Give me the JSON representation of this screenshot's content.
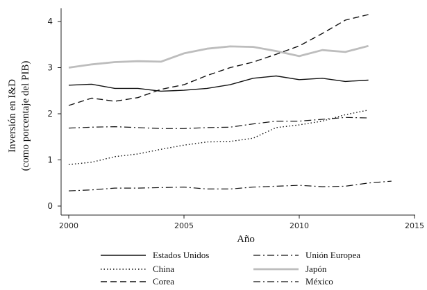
{
  "chart_data": {
    "type": "line",
    "title": "",
    "xlabel": "Año",
    "ylabel": [
      "Inversión en I&D",
      "(como porcentaje del PIB)"
    ],
    "xlim": [
      2000,
      2015
    ],
    "ylim": [
      0,
      4
    ],
    "xticks": [
      2000,
      2005,
      2010,
      2015
    ],
    "yticks": [
      0,
      1,
      2,
      3,
      4
    ],
    "grid": false,
    "legend_placement": "bottom",
    "series": [
      {
        "name": "Estados Unidos",
        "style": "solid",
        "color": "#111111",
        "x": [
          2000,
          2001,
          2002,
          2003,
          2004,
          2005,
          2006,
          2007,
          2008,
          2009,
          2010,
          2011,
          2012,
          2013
        ],
        "values": [
          2.62,
          2.64,
          2.55,
          2.55,
          2.49,
          2.51,
          2.55,
          2.63,
          2.77,
          2.82,
          2.74,
          2.77,
          2.7,
          2.73
        ]
      },
      {
        "name": "Unión Europea",
        "style": "dashdot",
        "color": "#111111",
        "x": [
          2000,
          2001,
          2002,
          2003,
          2004,
          2005,
          2006,
          2007,
          2008,
          2009,
          2010,
          2011,
          2012,
          2013
        ],
        "values": [
          1.69,
          1.71,
          1.72,
          1.7,
          1.68,
          1.68,
          1.7,
          1.71,
          1.78,
          1.84,
          1.84,
          1.88,
          1.92,
          1.91
        ]
      },
      {
        "name": "China",
        "style": "dotted",
        "color": "#111111",
        "x": [
          2000,
          2001,
          2002,
          2003,
          2004,
          2005,
          2006,
          2007,
          2008,
          2009,
          2010,
          2011,
          2012,
          2013
        ],
        "values": [
          0.9,
          0.95,
          1.07,
          1.13,
          1.23,
          1.32,
          1.39,
          1.4,
          1.47,
          1.7,
          1.76,
          1.84,
          1.98,
          2.08
        ]
      },
      {
        "name": "Japón",
        "style": "thick",
        "color": "#bdbdbd",
        "x": [
          2000,
          2001,
          2002,
          2003,
          2004,
          2005,
          2006,
          2007,
          2008,
          2009,
          2010,
          2011,
          2012,
          2013
        ],
        "values": [
          3.0,
          3.07,
          3.12,
          3.14,
          3.13,
          3.31,
          3.41,
          3.46,
          3.45,
          3.36,
          3.25,
          3.38,
          3.34,
          3.47
        ]
      },
      {
        "name": "Corea",
        "style": "dashed",
        "color": "#111111",
        "x": [
          2000,
          2001,
          2002,
          2003,
          2004,
          2005,
          2006,
          2007,
          2008,
          2009,
          2010,
          2011,
          2012,
          2013
        ],
        "values": [
          2.18,
          2.34,
          2.27,
          2.35,
          2.53,
          2.63,
          2.83,
          3.0,
          3.12,
          3.29,
          3.47,
          3.74,
          4.03,
          4.15
        ]
      },
      {
        "name": "México",
        "style": "dashdot",
        "color": "#111111",
        "x": [
          2000,
          2001,
          2002,
          2003,
          2004,
          2005,
          2006,
          2007,
          2008,
          2009,
          2010,
          2011,
          2012,
          2013,
          2014
        ],
        "values": [
          0.33,
          0.35,
          0.39,
          0.39,
          0.4,
          0.41,
          0.37,
          0.37,
          0.41,
          0.43,
          0.45,
          0.42,
          0.43,
          0.5,
          0.54
        ]
      }
    ]
  }
}
